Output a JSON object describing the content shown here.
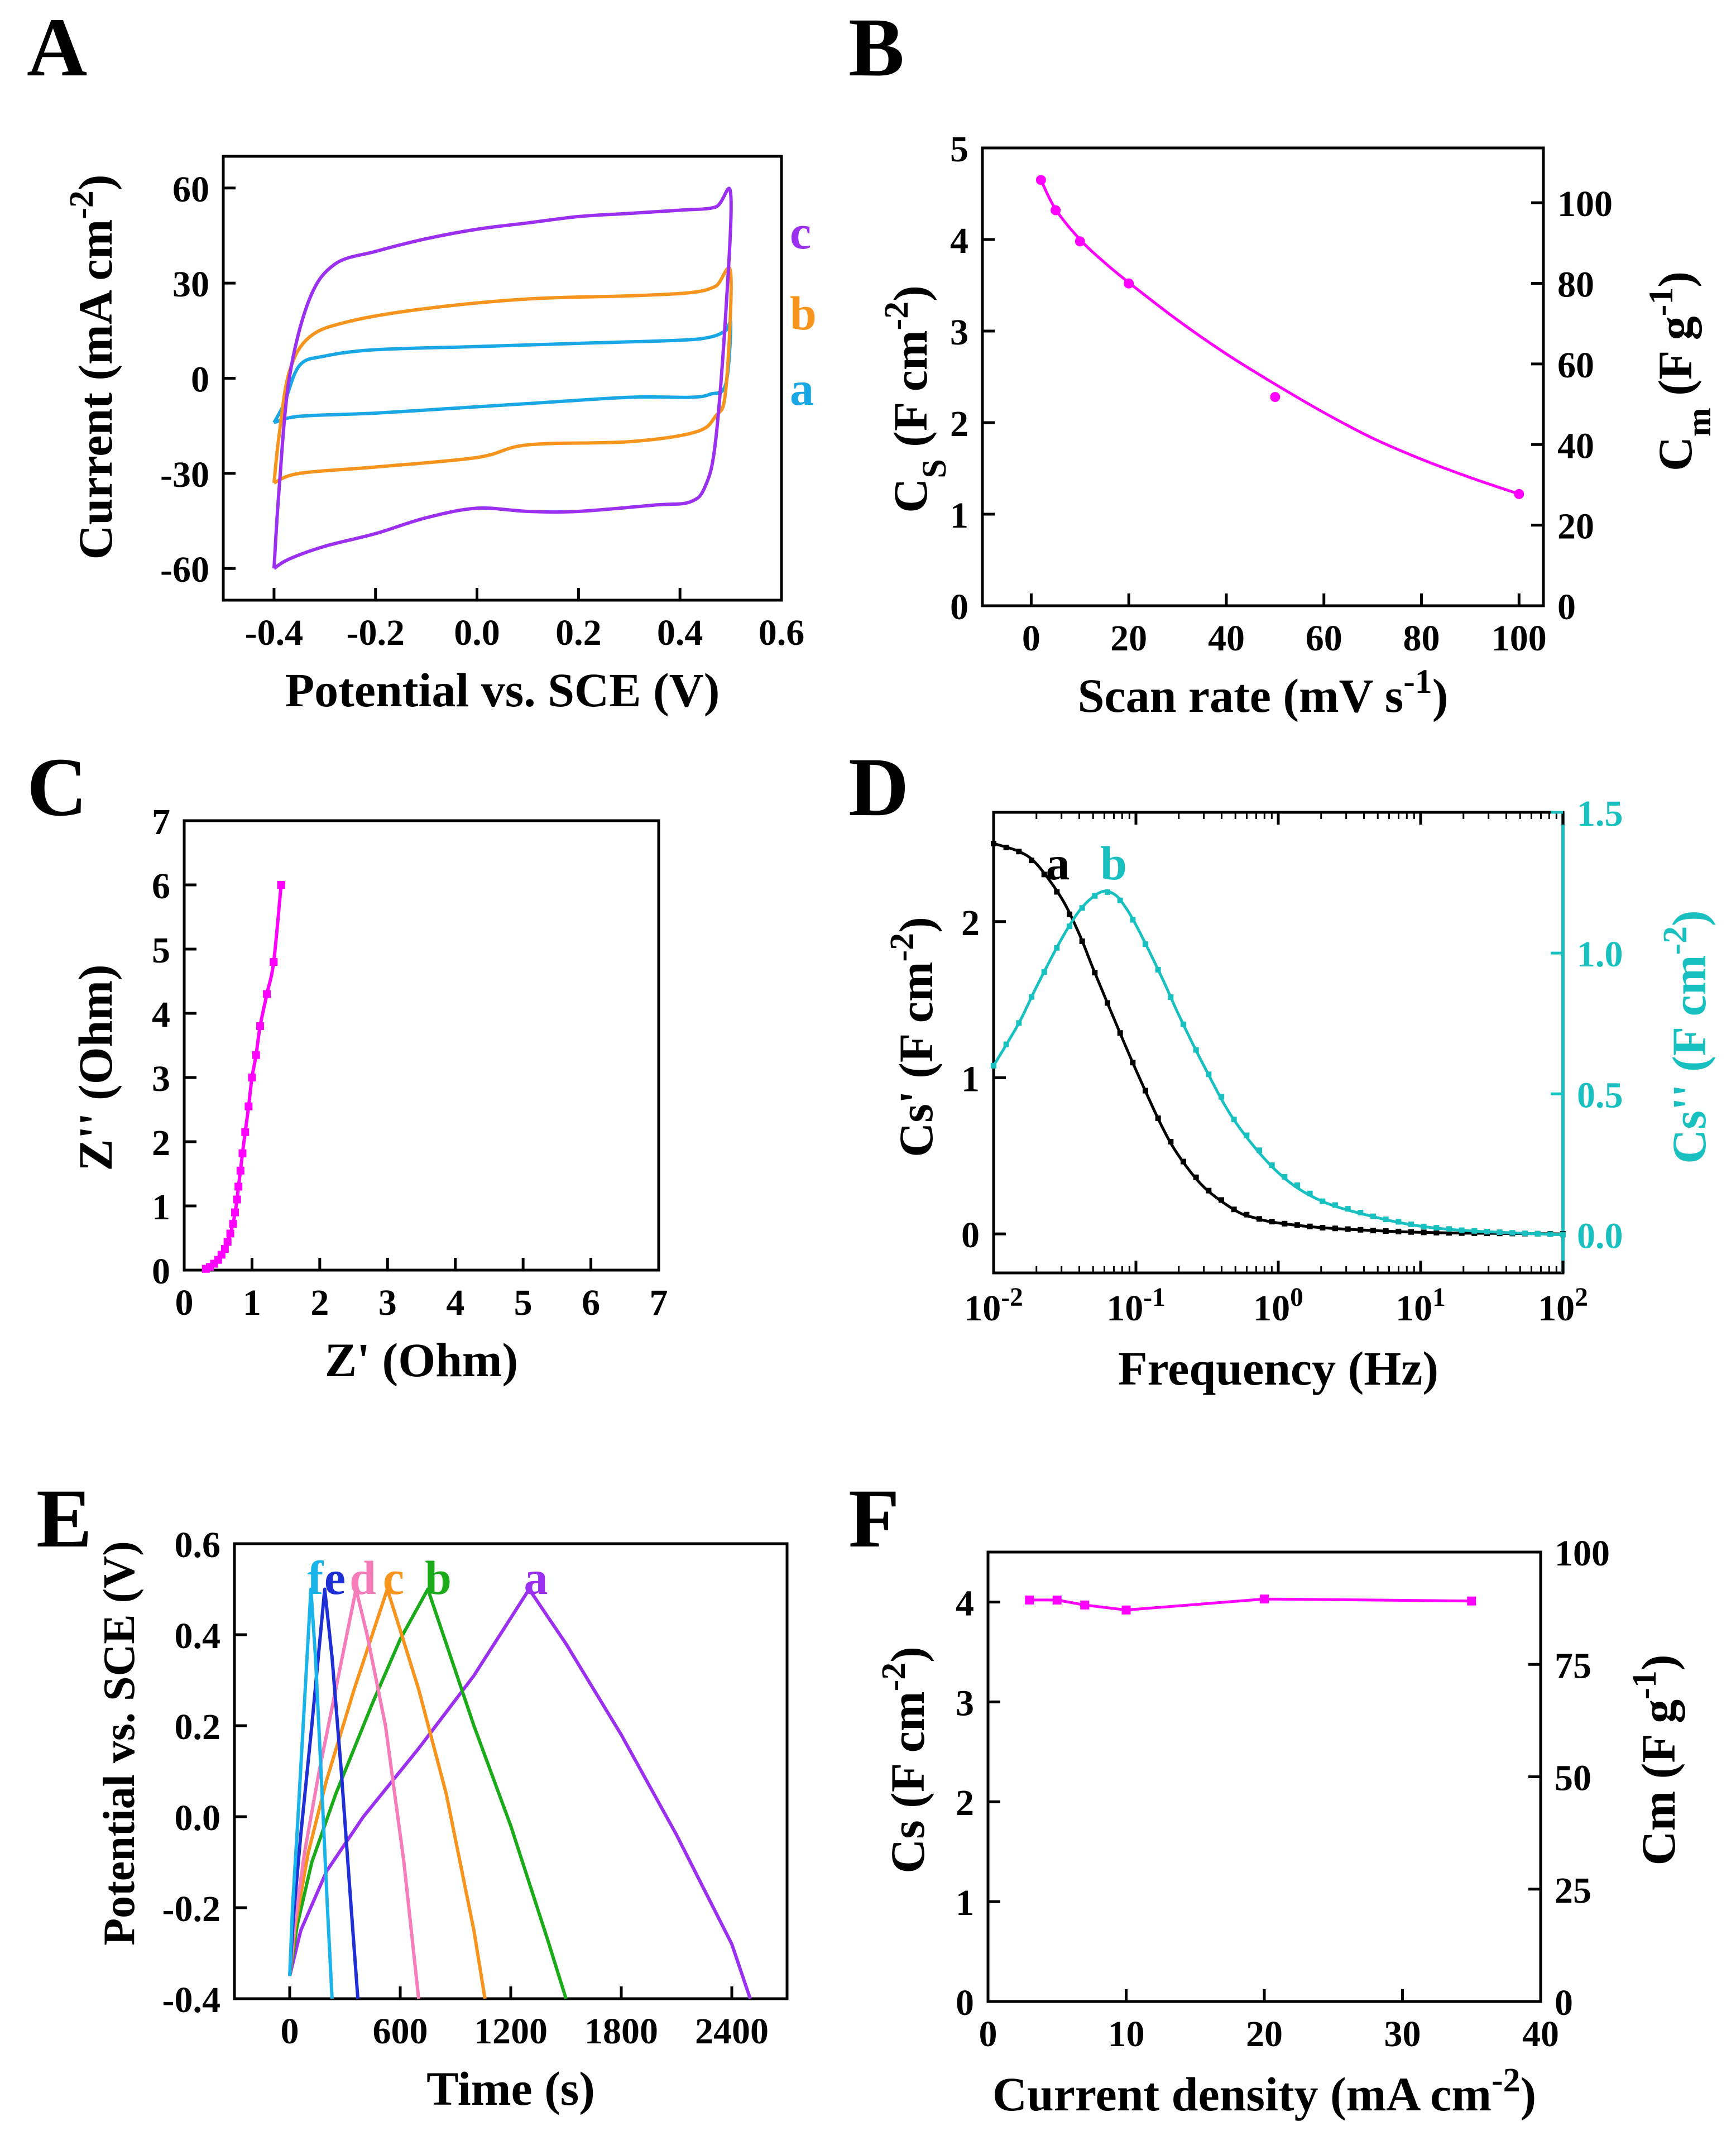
{
  "colors": {
    "a_cv": "#1aa7e6",
    "b_cv": "#f7941d",
    "c_cv": "#9b30f0",
    "magenta": "#ff00ff",
    "black": "#000000",
    "teal": "#19c0c0",
    "gcd_a": "#9b30f0",
    "gcd_b": "#1aaa1a",
    "gcd_c": "#f7941d",
    "gcd_d": "#f47dba",
    "gcd_e": "#1f2fd6",
    "gcd_f": "#1ab4ea"
  },
  "chart_data": [
    {
      "panel": "A",
      "type": "line",
      "xlabel": "Potential vs. SCE (V)",
      "ylabel": "Current (mA cm-2)",
      "ylabel_parts": [
        "Current (mA cm",
        "-2",
        ")"
      ],
      "xlim": [
        -0.5,
        0.6
      ],
      "ylim": [
        -70,
        70
      ],
      "xticks": [
        -0.4,
        -0.2,
        0.0,
        0.2,
        0.4,
        0.6
      ],
      "xtick_labels": [
        "-0.4",
        "-0.2",
        "0.0",
        "0.2",
        "0.4",
        "0.6"
      ],
      "yticks": [
        60,
        30,
        0,
        -30,
        -60
      ],
      "ytick_labels": [
        "60",
        "30",
        "0",
        "-30",
        "-60"
      ],
      "series": [
        {
          "name": "a",
          "color": "#1aa7e6",
          "x": [
            -0.4,
            -0.38,
            -0.35,
            -0.3,
            -0.2,
            0.0,
            0.2,
            0.4,
            0.46,
            0.49,
            0.5,
            0.49,
            0.46,
            0.42,
            0.3,
            0.1,
            0.0,
            -0.2,
            -0.35,
            -0.4
          ],
          "y": [
            -14,
            -8,
            4,
            7,
            9,
            10,
            11,
            12,
            13,
            15,
            17,
            -2,
            -5,
            -6,
            -6,
            -8,
            -9,
            -11,
            -12,
            -14
          ]
        },
        {
          "name": "b",
          "color": "#f7941d",
          "x": [
            -0.4,
            -0.39,
            -0.37,
            -0.33,
            -0.25,
            -0.1,
            0.1,
            0.3,
            0.42,
            0.47,
            0.5,
            0.49,
            0.47,
            0.43,
            0.3,
            0.1,
            0.0,
            -0.2,
            -0.35,
            -0.4
          ],
          "y": [
            -33,
            -18,
            2,
            13,
            18,
            22,
            25,
            26,
            27,
            29,
            33,
            -4,
            -12,
            -17,
            -20,
            -21,
            -25,
            -28,
            -30,
            -33
          ]
        },
        {
          "name": "c",
          "color": "#9b30f0",
          "x": [
            -0.4,
            -0.39,
            -0.37,
            -0.33,
            -0.28,
            -0.2,
            -0.1,
            0.0,
            0.1,
            0.2,
            0.3,
            0.4,
            0.47,
            0.5,
            0.49,
            0.47,
            0.45,
            0.42,
            0.35,
            0.2,
            0.1,
            0.0,
            -0.1,
            -0.2,
            -0.3,
            -0.37,
            -0.4
          ],
          "y": [
            -60,
            -35,
            0,
            25,
            36,
            40,
            44,
            47,
            49,
            51,
            52,
            53,
            54,
            58,
            20,
            -20,
            -34,
            -39,
            -40,
            -42,
            -42,
            -41,
            -44,
            -49,
            -53,
            -57,
            -60
          ]
        }
      ],
      "labels": [
        "c",
        "b",
        "a"
      ]
    },
    {
      "panel": "B",
      "type": "scatter",
      "xlabel": "Scan rate (mV s-1)",
      "xlabel_parts": [
        "Scan rate (mV s",
        "-1",
        ")"
      ],
      "ylabel": "Cs (F cm-2)",
      "ylabel_parts": [
        "C",
        "S",
        " (F cm",
        "-2",
        ")"
      ],
      "y2label": "Cm (F g-1)",
      "y2label_parts": [
        "C",
        "m",
        " (F g",
        "-1",
        ")"
      ],
      "xlim": [
        -10,
        105
      ],
      "ylim": [
        0,
        5
      ],
      "y2lim": [
        0,
        113.6
      ],
      "xticks": [
        0,
        20,
        40,
        60,
        80,
        100
      ],
      "xtick_labels": [
        "0",
        "20",
        "40",
        "60",
        "80",
        "100"
      ],
      "yticks": [
        0,
        1,
        2,
        3,
        4,
        5
      ],
      "ytick_labels": [
        "0",
        "1",
        "2",
        "3",
        "4",
        "5"
      ],
      "y2ticks": [
        0,
        20,
        40,
        60,
        80,
        100
      ],
      "y2tick_labels": [
        "0",
        "20",
        "40",
        "60",
        "80",
        "100"
      ],
      "points": {
        "x": [
          2,
          5,
          10,
          20,
          50,
          100
        ],
        "y": [
          4.65,
          4.32,
          3.98,
          3.52,
          2.28,
          1.22
        ]
      },
      "fit": {
        "x": [
          2,
          5,
          10,
          15,
          20,
          30,
          40,
          50,
          60,
          70,
          80,
          90,
          100
        ],
        "y": [
          4.65,
          4.33,
          4.0,
          3.75,
          3.53,
          3.12,
          2.75,
          2.42,
          2.11,
          1.83,
          1.6,
          1.4,
          1.22
        ]
      },
      "color": "#ff00ff"
    },
    {
      "panel": "C",
      "type": "line",
      "xlabel": "Z' (Ohm)",
      "ylabel": "Z'' (Ohm)",
      "xlim": [
        0,
        7
      ],
      "ylim": [
        0,
        7
      ],
      "xticks": [
        0,
        1,
        2,
        3,
        4,
        5,
        6,
        7
      ],
      "xtick_labels": [
        "0",
        "1",
        "2",
        "3",
        "4",
        "5",
        "6",
        "7"
      ],
      "yticks": [
        0,
        1,
        2,
        3,
        4,
        5,
        6,
        7
      ],
      "ytick_labels": [
        "0",
        "1",
        "2",
        "3",
        "4",
        "5",
        "6",
        "7"
      ],
      "series": [
        {
          "name": "Z",
          "color": "#ff00ff",
          "x": [
            0.32,
            0.38,
            0.44,
            0.5,
            0.55,
            0.6,
            0.64,
            0.68,
            0.72,
            0.75,
            0.78,
            0.8,
            0.83,
            0.86,
            0.9,
            0.95,
            1.0,
            1.06,
            1.12,
            1.22,
            1.32,
            1.43
          ],
          "y": [
            0.02,
            0.05,
            0.1,
            0.16,
            0.24,
            0.33,
            0.44,
            0.57,
            0.72,
            0.9,
            1.1,
            1.3,
            1.55,
            1.82,
            2.15,
            2.55,
            3.0,
            3.35,
            3.8,
            4.3,
            4.8,
            6.0
          ]
        }
      ]
    },
    {
      "panel": "D",
      "type": "line",
      "xlabel": "Frequency (Hz)",
      "ylabel": "Cs' (F cm-2)",
      "ylabel_parts": [
        "Cs' (F cm",
        "-2",
        ")"
      ],
      "y2label": "Cs'' (F cm-2)",
      "y2label_parts": [
        "Cs'' (F cm",
        "-2",
        ")"
      ],
      "xscale": "log",
      "xlim": [
        0.01,
        100
      ],
      "ylim": [
        -0.25,
        2.7
      ],
      "y2lim": [
        -0.136,
        1.5
      ],
      "xticks": [
        0.01,
        0.1,
        1,
        10,
        100
      ],
      "xtick_bases": [
        "10",
        "10",
        "10",
        "10",
        "10"
      ],
      "xtick_exps": [
        "-2",
        "-1",
        "0",
        "1",
        "2"
      ],
      "yticks": [
        0,
        1,
        2
      ],
      "ytick_labels": [
        "0",
        "1",
        "2"
      ],
      "y2ticks": [
        0.0,
        0.5,
        1.0,
        1.5
      ],
      "y2tick_labels": [
        "0.0",
        "0.5",
        "1.0",
        "1.5"
      ],
      "series": [
        {
          "name": "a",
          "axis": "left",
          "color": "#000000",
          "x": [
            0.01,
            0.015,
            0.02,
            0.03,
            0.04,
            0.05,
            0.07,
            0.1,
            0.15,
            0.2,
            0.3,
            0.5,
            0.7,
            1,
            2,
            5,
            10,
            20,
            50,
            100
          ],
          "y": [
            2.5,
            2.45,
            2.37,
            2.15,
            1.92,
            1.7,
            1.38,
            1.05,
            0.7,
            0.5,
            0.3,
            0.15,
            0.1,
            0.07,
            0.04,
            0.02,
            0.01,
            0.005,
            0.002,
            0.0
          ]
        },
        {
          "name": "b",
          "axis": "right",
          "color": "#19c0c0",
          "x": [
            0.01,
            0.015,
            0.02,
            0.03,
            0.04,
            0.05,
            0.06,
            0.07,
            0.08,
            0.1,
            0.15,
            0.2,
            0.3,
            0.5,
            1,
            2,
            5,
            10,
            20,
            50,
            100
          ],
          "y": [
            0.6,
            0.75,
            0.88,
            1.05,
            1.15,
            1.2,
            1.22,
            1.21,
            1.18,
            1.1,
            0.92,
            0.78,
            0.6,
            0.4,
            0.22,
            0.12,
            0.06,
            0.03,
            0.015,
            0.005,
            0.0
          ]
        }
      ],
      "labels": [
        "a",
        "b"
      ]
    },
    {
      "panel": "E",
      "type": "line",
      "xlabel": "Time (s)",
      "ylabel": "Potential vs. SCE (V)",
      "xlim": [
        -300,
        2700
      ],
      "ylim": [
        -0.4,
        0.6
      ],
      "xticks": [
        0,
        600,
        1200,
        1800,
        2400
      ],
      "xtick_labels": [
        "0",
        "600",
        "1200",
        "1800",
        "2400"
      ],
      "yticks": [
        0.6,
        0.4,
        0.2,
        0.0,
        -0.2,
        -0.4
      ],
      "ytick_labels": [
        "0.6",
        "0.4",
        "0.2",
        "0.0",
        "-0.2",
        "-0.4"
      ],
      "series": [
        {
          "name": "a",
          "color": "#9b30f0",
          "x": [
            0,
            60,
            200,
            400,
            700,
            1000,
            1300,
            1500,
            1800,
            2100,
            2400,
            2500
          ],
          "y": [
            -0.35,
            -0.25,
            -0.12,
            0.0,
            0.15,
            0.31,
            0.5,
            0.38,
            0.18,
            -0.04,
            -0.28,
            -0.4
          ]
        },
        {
          "name": "b",
          "color": "#1aaa1a",
          "x": [
            0,
            40,
            120,
            250,
            450,
            600,
            750,
            850,
            1000,
            1200,
            1400,
            1500
          ],
          "y": [
            -0.35,
            -0.24,
            -0.1,
            0.05,
            0.25,
            0.39,
            0.5,
            0.38,
            0.2,
            -0.02,
            -0.27,
            -0.4
          ]
        },
        {
          "name": "c",
          "color": "#f7941d",
          "x": [
            0,
            30,
            100,
            200,
            350,
            530,
            600,
            700,
            850,
            1000,
            1060
          ],
          "y": [
            -0.35,
            -0.24,
            -0.08,
            0.08,
            0.28,
            0.5,
            0.41,
            0.28,
            0.05,
            -0.25,
            -0.4
          ]
        },
        {
          "name": "d",
          "color": "#f47dba",
          "x": [
            0,
            25,
            80,
            160,
            260,
            360,
            420,
            520,
            620,
            700
          ],
          "y": [
            -0.35,
            -0.24,
            -0.08,
            0.1,
            0.3,
            0.5,
            0.4,
            0.2,
            -0.1,
            -0.4
          ]
        },
        {
          "name": "e",
          "color": "#1f2fd6",
          "x": [
            0,
            20,
            60,
            120,
            190,
            230,
            280,
            330,
            370
          ],
          "y": [
            -0.35,
            -0.22,
            -0.04,
            0.2,
            0.5,
            0.35,
            0.1,
            -0.18,
            -0.4
          ]
        },
        {
          "name": "f",
          "color": "#1ab4ea",
          "x": [
            0,
            15,
            45,
            80,
            115,
            140,
            170,
            205,
            230
          ],
          "y": [
            -0.35,
            -0.2,
            0.0,
            0.25,
            0.5,
            0.35,
            0.1,
            -0.2,
            -0.4
          ]
        }
      ],
      "labels": [
        "f",
        "e",
        "d",
        "c",
        "b",
        "a"
      ]
    },
    {
      "panel": "F",
      "type": "line",
      "xlabel": "Current density (mA cm-2)",
      "xlabel_parts": [
        "Current density (mA cm",
        "-2",
        ")"
      ],
      "ylabel": "Cs (F cm-2)",
      "ylabel_parts": [
        "Cs (F cm",
        "-2",
        ")"
      ],
      "y2label": "Cm (F g-1)",
      "y2label_parts": [
        "Cm (F g",
        "-1",
        ")"
      ],
      "xlim": [
        0,
        40
      ],
      "ylim": [
        0,
        4.5
      ],
      "y2lim": [
        0,
        100
      ],
      "xticks": [
        0,
        10,
        20,
        30,
        40
      ],
      "xtick_labels": [
        "0",
        "10",
        "20",
        "30",
        "40"
      ],
      "yticks": [
        0,
        1,
        2,
        3,
        4
      ],
      "ytick_labels": [
        "0",
        "1",
        "2",
        "3",
        "4"
      ],
      "y2ticks": [
        0,
        25,
        50,
        75,
        100
      ],
      "y2tick_labels": [
        "0",
        "25",
        "50",
        "75",
        "100"
      ],
      "series": [
        {
          "name": "Cs",
          "color": "#ff00ff",
          "x": [
            3,
            5,
            7,
            10,
            20,
            35
          ],
          "y": [
            4.02,
            4.02,
            3.97,
            3.92,
            4.03,
            4.01
          ]
        }
      ]
    }
  ],
  "panel_letters": [
    "A",
    "B",
    "C",
    "D",
    "E",
    "F"
  ]
}
